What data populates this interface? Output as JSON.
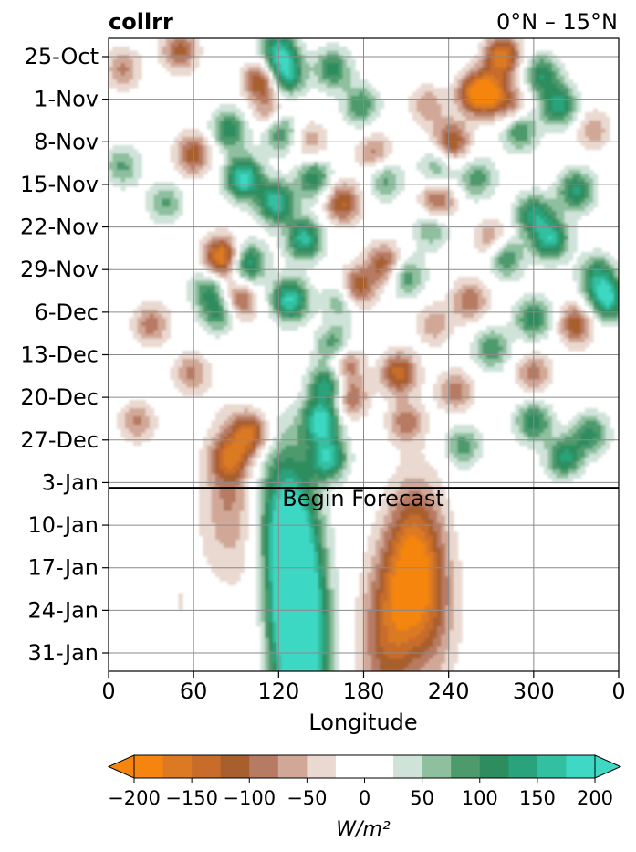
{
  "chart_data": {
    "type": "heatmap",
    "title_left": "collrr",
    "title_right": "0°N – 15°N",
    "xlabel": "Longitude",
    "x_ticks": [
      "0",
      "60",
      "120",
      "180",
      "240",
      "300",
      "0"
    ],
    "x_tick_values": [
      0,
      60,
      120,
      180,
      240,
      300,
      360
    ],
    "xlim": [
      0,
      360
    ],
    "y_ticks": [
      "25-Oct",
      "1-Nov",
      "8-Nov",
      "15-Nov",
      "22-Nov",
      "29-Nov",
      "6-Dec",
      "13-Dec",
      "20-Dec",
      "27-Dec",
      "3-Jan",
      "10-Jan",
      "17-Jan",
      "24-Jan",
      "31-Jan"
    ],
    "y_tick_day": [
      0,
      7,
      14,
      21,
      28,
      35,
      42,
      49,
      56,
      63,
      70,
      77,
      84,
      91,
      98
    ],
    "ylim_day": [
      -3,
      101
    ],
    "forecast_start_day": 71,
    "forecast_label": "Begin Forecast",
    "grid": true,
    "colorbar": {
      "levels": [
        -200,
        -175,
        -150,
        -125,
        -100,
        -75,
        -50,
        -25,
        25,
        50,
        75,
        100,
        125,
        150,
        175,
        200
      ],
      "ticks": [
        "−200",
        "−150",
        "−100",
        "−50",
        "0",
        "50",
        "100",
        "150",
        "200"
      ],
      "tick_values": [
        -200,
        -150,
        -100,
        -50,
        0,
        50,
        100,
        150,
        200
      ],
      "label": "W/m²",
      "extend": "both",
      "colors_neg": [
        "#f5850f",
        "#db7a23",
        "#c76c2a",
        "#a85f2e",
        "#b77a62",
        "#d1a898",
        "#ead9d0"
      ],
      "color_mid": "#ffffff",
      "colors_pos": [
        "#cfe3d9",
        "#8ebf9f",
        "#4d9a6d",
        "#2e8d5f",
        "#2aa27c",
        "#33c0a0",
        "#3ed8c4"
      ]
    },
    "blobs": [
      {
        "lon": 155,
        "day": 54,
        "v": 160
      },
      {
        "lon": 150,
        "day": 60,
        "v": 190
      },
      {
        "lon": 155,
        "day": 66,
        "v": 170
      },
      {
        "lon": 160,
        "day": 48,
        "v": 150
      },
      {
        "lon": 128,
        "day": 40,
        "v": 180
      },
      {
        "lon": 138,
        "day": 30,
        "v": 160
      },
      {
        "lon": 118,
        "day": 24,
        "v": 170
      },
      {
        "lon": 95,
        "day": 20,
        "v": 190
      },
      {
        "lon": 85,
        "day": 12,
        "v": 120
      },
      {
        "lon": 120,
        "day": 12,
        "v": 150
      },
      {
        "lon": 145,
        "day": 20,
        "v": 120
      },
      {
        "lon": 120,
        "day": -1,
        "v": 150
      },
      {
        "lon": 125,
        "day": 3,
        "v": 160
      },
      {
        "lon": 158,
        "day": 2,
        "v": 110
      },
      {
        "lon": 98,
        "day": 34,
        "v": 150
      },
      {
        "lon": 78,
        "day": 42,
        "v": 110
      },
      {
        "lon": 210,
        "day": 36,
        "v": 100
      },
      {
        "lon": 228,
        "day": 28,
        "v": 90
      },
      {
        "lon": 232,
        "day": 18,
        "v": 80
      },
      {
        "lon": 260,
        "day": 20,
        "v": 90
      },
      {
        "lon": 280,
        "day": 33,
        "v": 110
      },
      {
        "lon": 270,
        "day": 48,
        "v": 100
      },
      {
        "lon": 300,
        "day": 26,
        "v": 130
      },
      {
        "lon": 312,
        "day": 30,
        "v": 160
      },
      {
        "lon": 330,
        "day": 22,
        "v": 130
      },
      {
        "lon": 318,
        "day": 8,
        "v": 140
      },
      {
        "lon": 305,
        "day": 3,
        "v": 120
      },
      {
        "lon": 345,
        "day": 36,
        "v": 120
      },
      {
        "lon": 352,
        "day": 40,
        "v": 170
      },
      {
        "lon": 300,
        "day": 60,
        "v": 120
      },
      {
        "lon": 322,
        "day": 66,
        "v": 140
      },
      {
        "lon": 340,
        "day": 62,
        "v": 110
      },
      {
        "lon": 250,
        "day": 64,
        "v": 90
      },
      {
        "lon": 300,
        "day": 43,
        "v": 120
      },
      {
        "lon": 290,
        "day": 12,
        "v": 110
      },
      {
        "lon": 178,
        "day": 8,
        "v": 100
      },
      {
        "lon": 195,
        "day": 20,
        "v": 90
      },
      {
        "lon": 40,
        "day": 24,
        "v": 80
      },
      {
        "lon": 70,
        "day": 38,
        "v": 90
      },
      {
        "lon": 10,
        "day": 18,
        "v": 80
      },
      {
        "lon": 165,
        "day": 40,
        "v": 90
      },
      {
        "lon": 108,
        "day": 4,
        "v": -140
      },
      {
        "lon": 115,
        "day": 10,
        "v": -110
      },
      {
        "lon": 60,
        "day": 16,
        "v": -120
      },
      {
        "lon": 80,
        "day": 33,
        "v": -190
      },
      {
        "lon": 92,
        "day": 40,
        "v": -120
      },
      {
        "lon": 165,
        "day": 24,
        "v": -130
      },
      {
        "lon": 175,
        "day": 38,
        "v": -140
      },
      {
        "lon": 165,
        "day": 50,
        "v": -160
      },
      {
        "lon": 170,
        "day": 56,
        "v": -110
      },
      {
        "lon": 195,
        "day": 34,
        "v": -120
      },
      {
        "lon": 188,
        "day": 16,
        "v": -90
      },
      {
        "lon": 232,
        "day": 24,
        "v": -120
      },
      {
        "lon": 242,
        "day": 14,
        "v": -130
      },
      {
        "lon": 258,
        "day": 6,
        "v": -130
      },
      {
        "lon": 278,
        "day": 0,
        "v": -170
      },
      {
        "lon": 268,
        "day": 6,
        "v": -150
      },
      {
        "lon": 285,
        "day": 8,
        "v": -90
      },
      {
        "lon": 50,
        "day": -1,
        "v": -110
      },
      {
        "lon": 10,
        "day": 2,
        "v": -80
      },
      {
        "lon": 30,
        "day": 44,
        "v": -90
      },
      {
        "lon": 58,
        "day": 52,
        "v": -80
      },
      {
        "lon": 85,
        "day": 66,
        "v": -100
      },
      {
        "lon": 100,
        "day": 62,
        "v": -150
      },
      {
        "lon": 205,
        "day": 52,
        "v": -140
      },
      {
        "lon": 210,
        "day": 60,
        "v": -90
      },
      {
        "lon": 245,
        "day": 55,
        "v": -90
      },
      {
        "lon": 255,
        "day": 40,
        "v": -100
      },
      {
        "lon": 230,
        "day": 44,
        "v": -70
      },
      {
        "lon": 330,
        "day": 44,
        "v": -120
      },
      {
        "lon": 300,
        "day": 52,
        "v": -90
      },
      {
        "lon": 342,
        "day": 12,
        "v": -70
      },
      {
        "lon": 20,
        "day": 60,
        "v": -80
      },
      {
        "lon": 270,
        "day": 30,
        "v": -80
      },
      {
        "lon": 225,
        "day": 8,
        "v": -70
      },
      {
        "lon": 142,
        "day": 14,
        "v": -70
      },
      {
        "lon": 130,
        "day": 78,
        "v": 100
      },
      {
        "lon": 130,
        "day": 86,
        "v": 140
      },
      {
        "lon": 132,
        "day": 94,
        "v": 150
      },
      {
        "lon": 138,
        "day": 100,
        "v": 130
      },
      {
        "lon": 120,
        "day": 74,
        "v": 80
      },
      {
        "lon": 210,
        "day": 86,
        "v": -120
      },
      {
        "lon": 220,
        "day": 82,
        "v": -90
      },
      {
        "lon": 195,
        "day": 96,
        "v": -100
      },
      {
        "lon": 230,
        "day": 92,
        "v": -60
      },
      {
        "lon": 85,
        "day": 72,
        "v": -80
      },
      {
        "lon": 110,
        "day": 88,
        "v": -30
      },
      {
        "lon": 330,
        "day": 80,
        "v": -25
      },
      {
        "lon": 50,
        "day": 90,
        "v": -25
      }
    ]
  }
}
